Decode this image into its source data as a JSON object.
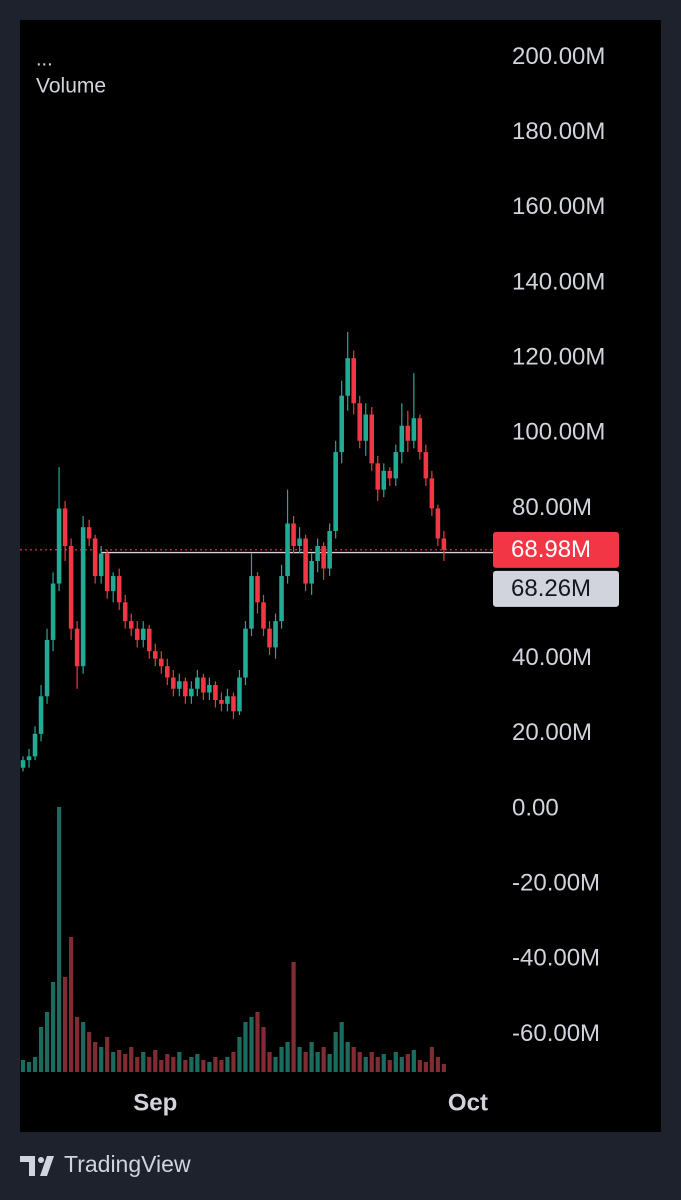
{
  "chart_data": {
    "type": "candlestick",
    "legend_menu": "...",
    "categories": [
      null,
      null,
      null,
      null,
      null,
      null,
      null,
      null,
      null,
      null,
      null,
      null,
      null,
      null,
      null,
      null,
      null,
      null,
      null,
      null,
      null,
      null,
      null,
      null,
      null,
      null,
      null,
      null,
      null,
      null,
      null,
      null,
      null,
      null,
      null,
      null,
      null,
      null,
      null,
      null,
      null,
      null,
      null,
      null,
      null,
      null,
      null,
      null,
      null,
      null,
      null,
      null,
      null,
      null,
      null,
      null,
      null,
      null,
      null,
      null,
      null,
      null,
      null,
      null,
      null,
      null,
      null,
      null,
      null,
      null,
      null
    ],
    "xlim": [
      -0.5,
      78.5
    ],
    "xticks": [
      {
        "value": 22,
        "label": "Sep"
      },
      {
        "value": 74,
        "label": "Oct"
      }
    ],
    "ylim": [
      -70,
      210
    ],
    "yticks": [
      {
        "value": 200,
        "label": "200.00M"
      },
      {
        "value": 180,
        "label": "180.00M"
      },
      {
        "value": 160,
        "label": "160.00M"
      },
      {
        "value": 140,
        "label": "140.00M"
      },
      {
        "value": 120,
        "label": "120.00M"
      },
      {
        "value": 100,
        "label": "100.00M"
      },
      {
        "value": 80,
        "label": "80.00M"
      },
      {
        "value": 40,
        "label": "40.00M"
      },
      {
        "value": 20,
        "label": "20.00M"
      },
      {
        "value": 0,
        "label": "0.00"
      },
      {
        "value": -20,
        "label": "-20.00M"
      },
      {
        "value": -40,
        "label": "-40.00M"
      },
      {
        "value": -60,
        "label": "-60.00M"
      }
    ],
    "up_color": "#22ab94",
    "down_color": "#f23645",
    "open": [
      11,
      13,
      14,
      20,
      30,
      45,
      60,
      80,
      70,
      48,
      38,
      75,
      72,
      62,
      68,
      58,
      62,
      55,
      50,
      48,
      45,
      48,
      42,
      40,
      38,
      35,
      32,
      34,
      30,
      32,
      35,
      31,
      33,
      29,
      28,
      30,
      26,
      35,
      48,
      62,
      55,
      48,
      43,
      50,
      62,
      76,
      70,
      72,
      60,
      66,
      70,
      64,
      74,
      95,
      110,
      120,
      108,
      98,
      105,
      92,
      85,
      90,
      88,
      95,
      102,
      98,
      104,
      95,
      88,
      80,
      72
    ],
    "high": [
      14,
      16,
      22,
      33,
      48,
      63,
      91,
      82,
      72,
      50,
      78,
      77,
      73,
      70,
      69,
      63,
      64,
      57,
      52,
      50,
      50,
      49,
      44,
      42,
      40,
      37,
      36,
      35,
      34,
      37,
      36,
      35,
      34,
      31,
      32,
      31,
      37,
      50,
      68,
      63,
      57,
      50,
      52,
      65,
      85,
      78,
      75,
      73,
      68,
      72,
      71,
      76,
      98,
      114,
      127,
      122,
      110,
      108,
      107,
      94,
      92,
      91,
      97,
      108,
      106,
      116,
      105,
      97,
      90,
      81,
      74
    ],
    "low": [
      10,
      11,
      13,
      18,
      28,
      42,
      58,
      66,
      45,
      32,
      36,
      70,
      60,
      60,
      56,
      55,
      53,
      48,
      46,
      43,
      43,
      40,
      38,
      36,
      33,
      30,
      30,
      28,
      28,
      30,
      29,
      29,
      27,
      26,
      26,
      24,
      25,
      33,
      46,
      52,
      46,
      41,
      40,
      48,
      60,
      68,
      68,
      58,
      57,
      63,
      61,
      62,
      72,
      92,
      106,
      105,
      96,
      94,
      90,
      82,
      83,
      86,
      86,
      92,
      95,
      96,
      93,
      86,
      78,
      70,
      66
    ],
    "close": [
      13,
      14,
      20,
      30,
      45,
      60,
      80,
      70,
      48,
      38,
      75,
      72,
      62,
      68,
      58,
      62,
      55,
      50,
      48,
      45,
      48,
      42,
      40,
      38,
      35,
      32,
      34,
      30,
      32,
      35,
      31,
      33,
      29,
      28,
      30,
      26,
      35,
      48,
      62,
      55,
      48,
      43,
      50,
      62,
      76,
      70,
      72,
      60,
      66,
      70,
      64,
      74,
      95,
      110,
      120,
      108,
      98,
      105,
      92,
      85,
      90,
      88,
      95,
      102,
      98,
      104,
      95,
      88,
      80,
      72,
      68.98
    ],
    "volume": {
      "name": "Volume",
      "up_color": "#1c6b5e",
      "down_color": "#7f2c33",
      "values": [
        12,
        10,
        15,
        45,
        60,
        90,
        265,
        95,
        135,
        55,
        50,
        40,
        30,
        25,
        35,
        20,
        22,
        18,
        25,
        15,
        20,
        15,
        22,
        12,
        18,
        15,
        20,
        12,
        15,
        18,
        12,
        10,
        15,
        12,
        15,
        20,
        35,
        50,
        55,
        60,
        45,
        20,
        15,
        25,
        30,
        110,
        25,
        20,
        30,
        20,
        25,
        18,
        40,
        50,
        30,
        25,
        20,
        15,
        20,
        15,
        18,
        12,
        20,
        15,
        18,
        22,
        12,
        10,
        25,
        15,
        8
      ]
    },
    "price_lines": [
      {
        "value": 68.98,
        "label": "68.98M",
        "color": "#f23645"
      },
      {
        "value": 68.26,
        "label": "68.26M",
        "color": "#d1d4dc"
      }
    ]
  },
  "brand": "TradingView"
}
